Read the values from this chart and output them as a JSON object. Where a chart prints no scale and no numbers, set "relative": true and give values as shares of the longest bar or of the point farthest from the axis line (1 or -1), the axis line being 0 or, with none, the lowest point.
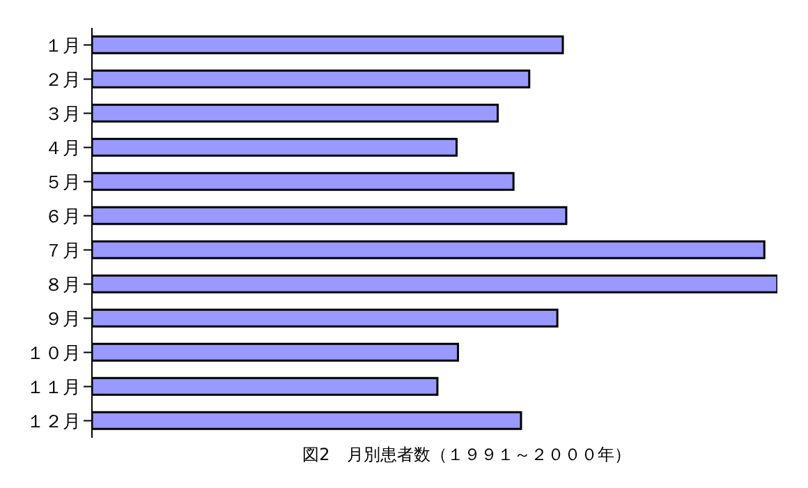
{
  "chart_data": {
    "type": "bar",
    "orientation": "horizontal",
    "relative": true,
    "categories": [
      "１月",
      "２月",
      "３月",
      "４月",
      "５月",
      "６月",
      "７月",
      "８月",
      "９月",
      "１０月",
      "１１月",
      "１２月"
    ],
    "values": [
      0.687,
      0.638,
      0.592,
      0.532,
      0.615,
      0.692,
      0.981,
      1,
      0.679,
      0.534,
      0.504,
      0.626
    ],
    "color": "#9999ff",
    "annotations": [
      "図2　月別患者数（１９９１～２０００年）"
    ]
  }
}
